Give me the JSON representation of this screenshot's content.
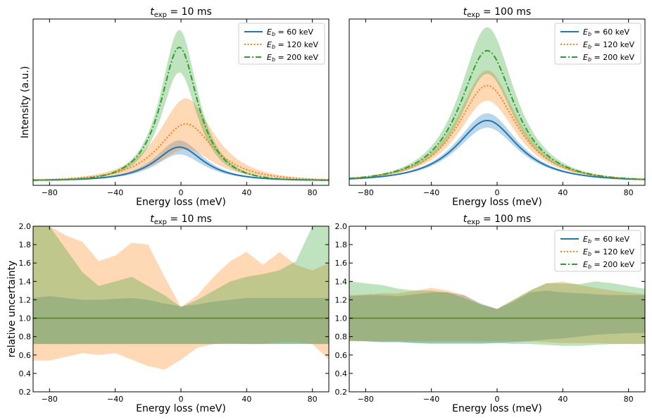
{
  "colors": {
    "blue": "#1f77b4",
    "orange": "#ff7f0e",
    "green": "#2ca02c"
  },
  "legend": [
    "E_b = 60 keV",
    "E_b = 120 keV",
    "E_b = 200 keV"
  ],
  "chart_data": [
    {
      "id": "top-left",
      "type": "line",
      "title": "t_exp = 10 ms",
      "title_main": "t",
      "title_sub": "exp",
      "title_rest": " = 10 ms",
      "xlabel": "Energy loss (meV)",
      "ylabel": "Intensity (a.u.)",
      "xlim": [
        -90,
        90
      ],
      "ylim": [
        0,
        1.0
      ],
      "xticks": [
        -80,
        -40,
        0,
        40,
        80
      ],
      "xtick_labels": [
        "−80",
        "−40",
        "0",
        "40",
        "80"
      ],
      "yticks": [],
      "ytick_labels": [],
      "legend": true,
      "legend_position": "top-right",
      "series": [
        {
          "name": "E_b = 60 keV",
          "style": "solid",
          "color": "blue",
          "peak": 0.2,
          "center": -1,
          "width": 22,
          "base": 0.03,
          "upper_frac": 0.2,
          "lower_frac": 0.22
        },
        {
          "name": "E_b = 120 keV",
          "style": "dotted",
          "color": "orange",
          "peak": 0.34,
          "center": 3,
          "width": 25,
          "base": 0.03,
          "upper_frac": 0.45,
          "lower_frac": 0.45
        },
        {
          "name": "E_b = 200 keV",
          "style": "dashdot",
          "color": "green",
          "peak": 0.8,
          "center": -1,
          "width": 17,
          "base": 0.03,
          "upper_frac": 0.13,
          "lower_frac": 0.19
        }
      ]
    },
    {
      "id": "top-right",
      "type": "line",
      "title": "t_exp = 100 ms",
      "title_main": "t",
      "title_sub": "exp",
      "title_rest": " = 100 ms",
      "xlabel": "Energy loss (meV)",
      "ylabel": "",
      "xlim": [
        -90,
        90
      ],
      "ylim": [
        0,
        1.0
      ],
      "xticks": [
        -80,
        -40,
        0,
        40,
        80
      ],
      "xtick_labels": [
        "−80",
        "−40",
        "0",
        "40",
        "80"
      ],
      "yticks": [],
      "ytick_labels": [],
      "legend": true,
      "legend_position": "top-right",
      "series": [
        {
          "name": "E_b = 60 keV",
          "style": "solid",
          "color": "blue",
          "peak": 0.36,
          "center": -6,
          "width": 28,
          "base": 0.03,
          "upper_frac": 0.12,
          "lower_frac": 0.12
        },
        {
          "name": "E_b = 120 keV",
          "style": "dotted",
          "color": "orange",
          "peak": 0.57,
          "center": -6,
          "width": 27,
          "base": 0.03,
          "upper_frac": 0.16,
          "lower_frac": 0.16
        },
        {
          "name": "E_b = 200 keV",
          "style": "dashdot",
          "color": "green",
          "peak": 0.78,
          "center": -6,
          "width": 25,
          "base": 0.03,
          "upper_frac": 0.18,
          "lower_frac": 0.18
        }
      ]
    },
    {
      "id": "bottom-left",
      "type": "area",
      "title": "t_exp = 10 ms",
      "title_main": "t",
      "title_sub": "exp",
      "title_rest": " = 10 ms",
      "xlabel": "Energy loss (meV)",
      "ylabel": "relative uncertainty",
      "xlim": [
        -90,
        90
      ],
      "ylim": [
        0.2,
        2.0
      ],
      "xticks": [
        -80,
        -40,
        0,
        40,
        80
      ],
      "xtick_labels": [
        "−80",
        "−40",
        "0",
        "40",
        "80"
      ],
      "yticks": [
        0.2,
        0.4,
        0.6,
        0.8,
        1.0,
        1.2,
        1.4,
        1.6,
        1.8,
        2.0
      ],
      "ytick_labels": [
        "0.2",
        "0.4",
        "0.6",
        "0.8",
        "1.0",
        "1.2",
        "1.4",
        "1.6",
        "1.8",
        "2.0"
      ],
      "legend": false,
      "x": [
        -90,
        -80,
        -70,
        -60,
        -50,
        -40,
        -30,
        -20,
        -10,
        0,
        10,
        20,
        30,
        40,
        50,
        60,
        70,
        80,
        90
      ],
      "series": [
        {
          "name": "E_b = 60 keV",
          "color": "blue",
          "line": 1.0,
          "upper": [
            1.22,
            1.24,
            1.22,
            1.2,
            1.2,
            1.21,
            1.22,
            1.2,
            1.16,
            1.13,
            1.15,
            1.18,
            1.2,
            1.22,
            1.22,
            1.22,
            1.22,
            1.22,
            1.22
          ],
          "lower": [
            0.72,
            0.72,
            0.72,
            0.72,
            0.72,
            0.72,
            0.72,
            0.72,
            0.72,
            0.72,
            0.72,
            0.72,
            0.72,
            0.72,
            0.72,
            0.72,
            0.72,
            0.72,
            0.72
          ]
        },
        {
          "name": "E_b = 120 keV",
          "color": "orange",
          "line": 1.0,
          "upper": [
            2.0,
            2.0,
            1.9,
            1.83,
            1.62,
            1.68,
            1.82,
            1.8,
            1.45,
            1.12,
            1.25,
            1.45,
            1.62,
            1.72,
            1.58,
            1.72,
            1.58,
            1.52,
            1.6
          ],
          "lower": [
            0.54,
            0.54,
            0.58,
            0.62,
            0.6,
            0.62,
            0.55,
            0.48,
            0.44,
            0.55,
            0.68,
            0.72,
            0.73,
            0.72,
            0.72,
            0.74,
            0.74,
            0.72,
            0.55
          ]
        },
        {
          "name": "E_b = 200 keV",
          "color": "green",
          "line": 1.0,
          "upper": [
            2.0,
            2.0,
            1.75,
            1.5,
            1.35,
            1.4,
            1.45,
            1.35,
            1.25,
            1.12,
            1.2,
            1.3,
            1.4,
            1.45,
            1.48,
            1.52,
            1.62,
            2.0,
            2.0
          ],
          "lower": [
            0.72,
            0.72,
            0.72,
            0.72,
            0.72,
            0.72,
            0.72,
            0.72,
            0.72,
            0.72,
            0.72,
            0.72,
            0.72,
            0.72,
            0.72,
            0.72,
            0.72,
            0.72,
            0.72
          ]
        }
      ]
    },
    {
      "id": "bottom-right",
      "type": "area",
      "title": "t_exp = 100 ms",
      "title_main": "t",
      "title_sub": "exp",
      "title_rest": " = 100 ms",
      "xlabel": "Energy loss (meV)",
      "ylabel": "",
      "xlim": [
        -90,
        90
      ],
      "ylim": [
        0.2,
        2.0
      ],
      "xticks": [
        -80,
        -40,
        0,
        40,
        80
      ],
      "xtick_labels": [
        "−80",
        "−40",
        "0",
        "40",
        "80"
      ],
      "yticks": [
        0.2,
        0.4,
        0.6,
        0.8,
        1.0,
        1.2,
        1.4,
        1.6,
        1.8,
        2.0
      ],
      "ytick_labels": [
        "0.2",
        "0.4",
        "0.6",
        "0.8",
        "1.0",
        "1.2",
        "1.4",
        "1.6",
        "1.8",
        "2.0"
      ],
      "legend": true,
      "legend_position": "top-right",
      "x": [
        -90,
        -80,
        -70,
        -60,
        -50,
        -40,
        -30,
        -20,
        -10,
        0,
        10,
        20,
        30,
        40,
        50,
        60,
        70,
        80,
        90
      ],
      "series": [
        {
          "name": "E_b = 60 keV",
          "color": "blue",
          "line": 1.0,
          "upper": [
            1.24,
            1.25,
            1.25,
            1.24,
            1.26,
            1.28,
            1.28,
            1.25,
            1.16,
            1.1,
            1.18,
            1.28,
            1.3,
            1.28,
            1.27,
            1.26,
            1.25,
            1.25,
            1.25
          ],
          "lower": [
            0.75,
            0.75,
            0.74,
            0.74,
            0.73,
            0.73,
            0.73,
            0.73,
            0.73,
            0.73,
            0.74,
            0.75,
            0.77,
            0.78,
            0.8,
            0.82,
            0.83,
            0.84,
            0.84
          ]
        },
        {
          "name": "E_b = 120 keV",
          "color": "orange",
          "line": 1.0,
          "upper": [
            1.25,
            1.26,
            1.27,
            1.27,
            1.3,
            1.33,
            1.3,
            1.25,
            1.15,
            1.1,
            1.2,
            1.3,
            1.38,
            1.4,
            1.36,
            1.33,
            1.3,
            1.28,
            1.26
          ],
          "lower": [
            0.75,
            0.75,
            0.75,
            0.75,
            0.75,
            0.75,
            0.75,
            0.75,
            0.75,
            0.75,
            0.75,
            0.75,
            0.74,
            0.73,
            0.73,
            0.73,
            0.72,
            0.72,
            0.72
          ]
        },
        {
          "name": "E_b = 200 keV",
          "color": "green",
          "line": 1.0,
          "upper": [
            1.4,
            1.38,
            1.36,
            1.32,
            1.3,
            1.3,
            1.28,
            1.22,
            1.15,
            1.1,
            1.2,
            1.3,
            1.38,
            1.38,
            1.37,
            1.4,
            1.38,
            1.35,
            1.32
          ],
          "lower": [
            0.76,
            0.75,
            0.74,
            0.74,
            0.73,
            0.72,
            0.72,
            0.72,
            0.72,
            0.73,
            0.72,
            0.72,
            0.71,
            0.7,
            0.7,
            0.71,
            0.72,
            0.72,
            0.72
          ]
        }
      ]
    }
  ]
}
